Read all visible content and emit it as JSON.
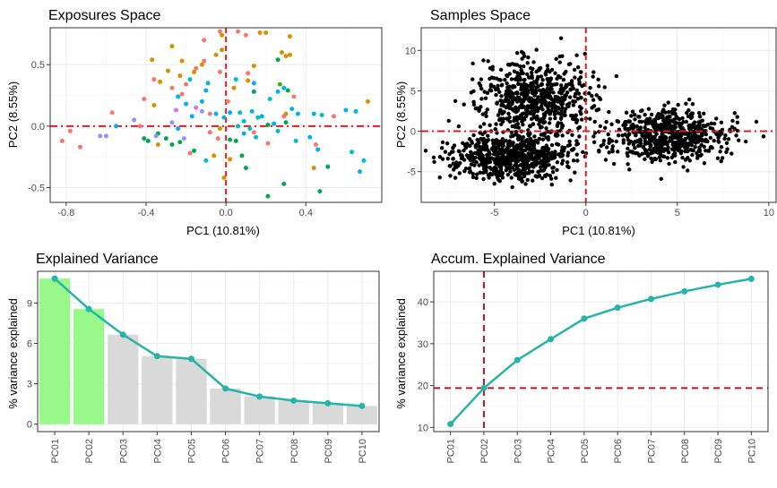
{
  "chart_data": [
    {
      "id": "exposures",
      "type": "scatter",
      "title": "Exposures Space",
      "xlabel": "PC1 (10.81%)",
      "ylabel": "PC2 (8.55%)",
      "xlim": [
        -0.88,
        0.78
      ],
      "ylim": [
        -0.62,
        0.8
      ],
      "xticks": [
        -0.8,
        -0.4,
        0.0,
        0.4
      ],
      "xtick_labels": [
        "-0.8",
        "-0.4",
        "0.0",
        "0.4"
      ],
      "yticks": [
        -0.5,
        0.0,
        0.5
      ],
      "ytick_labels": [
        "-0.5",
        "0.0",
        "0.5"
      ],
      "grid": true,
      "ref_lines": {
        "x": 0,
        "y": 0,
        "color": "#e41a1c"
      },
      "colors": [
        "#f8766d",
        "#d89000",
        "#00a84f",
        "#00b0f6",
        "#9590ff",
        "#e76bf3",
        "#00bfc4",
        "#39b600"
      ],
      "points": [
        [
          -0.03,
          0.77,
          0
        ],
        [
          0.06,
          0.77,
          0
        ],
        [
          0.2,
          0.76,
          1
        ],
        [
          0.17,
          0.76,
          1
        ],
        [
          0.1,
          0.74,
          0
        ],
        [
          -0.02,
          0.74,
          1
        ],
        [
          0.32,
          0.73,
          1
        ],
        [
          -0.11,
          0.7,
          0
        ],
        [
          -0.27,
          0.65,
          1
        ],
        [
          -0.02,
          0.62,
          1
        ],
        [
          0.28,
          0.6,
          1
        ],
        [
          -0.05,
          0.58,
          1
        ],
        [
          0.3,
          0.57,
          1
        ],
        [
          0.32,
          0.58,
          1
        ],
        [
          -0.37,
          0.54,
          1
        ],
        [
          0.26,
          0.54,
          2
        ],
        [
          -0.11,
          0.53,
          0
        ],
        [
          -0.22,
          0.53,
          1
        ],
        [
          -0.12,
          0.5,
          1
        ],
        [
          0.14,
          0.49,
          1
        ],
        [
          -0.15,
          0.47,
          0
        ],
        [
          -0.29,
          0.45,
          1
        ],
        [
          -0.16,
          0.44,
          1
        ],
        [
          -0.03,
          0.44,
          0
        ],
        [
          0.11,
          0.43,
          0
        ],
        [
          -0.23,
          0.41,
          1
        ],
        [
          -0.18,
          0.38,
          6
        ],
        [
          -0.36,
          0.38,
          0
        ],
        [
          -0.33,
          0.36,
          1
        ],
        [
          -0.09,
          0.35,
          6
        ],
        [
          -0.2,
          0.34,
          0
        ],
        [
          0.05,
          0.38,
          6
        ],
        [
          0.11,
          0.37,
          1
        ],
        [
          0.14,
          0.35,
          3
        ],
        [
          0.27,
          0.34,
          7
        ],
        [
          -0.27,
          0.31,
          0
        ],
        [
          0.29,
          0.31,
          3
        ],
        [
          0.04,
          0.31,
          1
        ],
        [
          -0.1,
          0.29,
          3
        ],
        [
          0.26,
          0.28,
          3
        ],
        [
          0.14,
          0.28,
          2
        ],
        [
          0.31,
          0.29,
          2
        ],
        [
          -0.22,
          0.26,
          0
        ],
        [
          0.34,
          0.24,
          0
        ],
        [
          -0.24,
          0.24,
          3
        ],
        [
          -0.41,
          0.22,
          0
        ],
        [
          0.22,
          0.22,
          6
        ],
        [
          -0.12,
          0.2,
          3
        ],
        [
          -0.2,
          0.18,
          3
        ],
        [
          0.01,
          0.2,
          0
        ],
        [
          -0.15,
          0.15,
          5
        ],
        [
          -0.36,
          0.17,
          1
        ],
        [
          0.33,
          0.14,
          3
        ],
        [
          -0.25,
          0.13,
          5
        ],
        [
          -0.12,
          0.12,
          4
        ],
        [
          0.02,
          0.11,
          3
        ],
        [
          0.07,
          0.11,
          6
        ],
        [
          0.13,
          0.12,
          3
        ],
        [
          -0.57,
          0.11,
          0
        ],
        [
          -0.08,
          0.1,
          0
        ],
        [
          -0.05,
          0.1,
          3
        ],
        [
          0.3,
          0.1,
          1
        ],
        [
          0.36,
          0.1,
          3
        ],
        [
          0.71,
          0.2,
          1
        ],
        [
          0.6,
          0.13,
          3
        ],
        [
          0.65,
          0.12,
          6
        ],
        [
          0.29,
          0.08,
          0
        ],
        [
          0.18,
          0.08,
          3
        ],
        [
          -0.17,
          0.08,
          3
        ],
        [
          0.16,
          0.07,
          6
        ],
        [
          -0.01,
          0.07,
          6
        ],
        [
          -0.46,
          0.05,
          4
        ],
        [
          0.44,
          0.1,
          3
        ],
        [
          0.48,
          0.09,
          6
        ],
        [
          0.54,
          0.08,
          0
        ],
        [
          0.09,
          0.04,
          6
        ],
        [
          0.3,
          0.03,
          2
        ],
        [
          -0.27,
          0.03,
          4
        ],
        [
          0.21,
          0.01,
          2
        ],
        [
          0.24,
          0.02,
          3
        ],
        [
          -0.55,
          0.0,
          3
        ],
        [
          -0.43,
          0.0,
          0
        ],
        [
          0.06,
          0.0,
          6
        ],
        [
          -0.24,
          -0.02,
          3
        ],
        [
          -0.03,
          -0.02,
          1
        ],
        [
          0.12,
          -0.02,
          6
        ],
        [
          0.14,
          -0.05,
          0
        ],
        [
          0.26,
          -0.04,
          6
        ],
        [
          -0.08,
          -0.05,
          0
        ],
        [
          -0.34,
          -0.06,
          2
        ],
        [
          0.09,
          -0.06,
          3
        ],
        [
          -0.35,
          -0.08,
          4
        ],
        [
          0.15,
          -0.09,
          6
        ],
        [
          -0.6,
          -0.08,
          4
        ],
        [
          -0.63,
          -0.08,
          4
        ],
        [
          -0.82,
          -0.12,
          0
        ],
        [
          -0.78,
          -0.04,
          0
        ],
        [
          -0.3,
          -0.1,
          2
        ],
        [
          -0.21,
          -0.1,
          4
        ],
        [
          -0.04,
          -0.1,
          0
        ],
        [
          0.02,
          -0.11,
          2
        ],
        [
          -0.23,
          -0.13,
          2
        ],
        [
          -0.41,
          -0.1,
          2
        ],
        [
          -0.39,
          -0.12,
          2
        ],
        [
          0.35,
          -0.12,
          6
        ],
        [
          0.42,
          -0.09,
          3
        ],
        [
          0.05,
          -0.12,
          2
        ],
        [
          -0.27,
          -0.15,
          2
        ],
        [
          0.21,
          -0.14,
          0
        ],
        [
          0.45,
          -0.15,
          0
        ],
        [
          -0.34,
          -0.15,
          1
        ],
        [
          -0.73,
          -0.17,
          0
        ],
        [
          0.46,
          -0.19,
          3
        ],
        [
          -0.16,
          -0.2,
          2
        ],
        [
          -0.18,
          -0.22,
          0
        ],
        [
          0.63,
          -0.21,
          6
        ],
        [
          -0.06,
          -0.24,
          1
        ],
        [
          -0.1,
          -0.28,
          6
        ],
        [
          0.02,
          -0.27,
          1
        ],
        [
          0.08,
          -0.24,
          2
        ],
        [
          0.69,
          -0.28,
          6
        ],
        [
          0.1,
          -0.34,
          2
        ],
        [
          0.44,
          -0.34,
          1
        ],
        [
          0.51,
          -0.33,
          2
        ],
        [
          0.67,
          -0.37,
          3
        ],
        [
          -0.01,
          -0.42,
          1
        ],
        [
          0.29,
          -0.47,
          2
        ],
        [
          0.47,
          -0.53,
          2
        ],
        [
          0.21,
          -0.57,
          2
        ]
      ]
    },
    {
      "id": "samples",
      "type": "scatter",
      "title": "Samples Space",
      "xlabel": "PC1 (10.81%)",
      "ylabel": "PC2 (8.55%)",
      "xlim": [
        -9.0,
        10.4
      ],
      "ylim": [
        -8.8,
        12.8
      ],
      "xticks": [
        -5,
        0,
        5,
        10
      ],
      "xtick_labels": [
        "-5",
        "0",
        "5",
        "10"
      ],
      "yticks": [
        -5,
        0,
        5,
        10
      ],
      "ytick_labels": [
        "-5",
        "0",
        "5",
        "10"
      ],
      "grid": true,
      "ref_lines": {
        "x": 0,
        "y": 0,
        "color": "#e41a1c"
      },
      "clusters": [
        {
          "cx": -2.8,
          "cy": 4.1,
          "sx": 1.7,
          "sy": 2.5,
          "n": 620
        },
        {
          "cx": -4.1,
          "cy": -3.0,
          "sx": 1.8,
          "sy": 1.6,
          "n": 680
        },
        {
          "cx": 4.6,
          "cy": -0.6,
          "sx": 1.7,
          "sy": 1.8,
          "n": 620
        }
      ]
    },
    {
      "id": "explained",
      "type": "bar",
      "title": "Explained Variance",
      "xlabel": "",
      "ylabel": "% variance explained",
      "categories": [
        "PC01",
        "PC02",
        "PC03",
        "PC04",
        "PC05",
        "PC06",
        "PC07",
        "PC08",
        "PC09",
        "PC10"
      ],
      "values": [
        10.81,
        8.55,
        6.65,
        5.05,
        4.85,
        2.65,
        2.05,
        1.75,
        1.55,
        1.35
      ],
      "highlight": [
        true,
        true,
        false,
        false,
        false,
        false,
        false,
        false,
        false,
        false
      ],
      "bar_color": "#d9d9d9",
      "highlight_color": "#98f98a",
      "line_color": "#26b3a8",
      "ylim": [
        -0.55,
        11.35
      ],
      "yticks": [
        0,
        3,
        6,
        9
      ],
      "ytick_labels": [
        "0",
        "3",
        "6",
        "9"
      ],
      "grid": true
    },
    {
      "id": "accum",
      "type": "line",
      "title": "Accum. Explained Variance",
      "xlabel": "",
      "ylabel": "% variance explained",
      "categories": [
        "PC01",
        "PC02",
        "PC03",
        "PC04",
        "PC05",
        "PC06",
        "PC07",
        "PC08",
        "PC09",
        "PC10"
      ],
      "values": [
        10.8,
        19.4,
        26.1,
        31.1,
        36.0,
        38.6,
        40.7,
        42.5,
        44.1,
        45.5
      ],
      "line_color": "#26b3a8",
      "ref_lines": {
        "x_index": 1,
        "y": 19.4,
        "color": "#b2182b"
      },
      "ylim": [
        9.0,
        47.3
      ],
      "yticks": [
        10,
        20,
        30,
        40
      ],
      "ytick_labels": [
        "10",
        "20",
        "30",
        "40"
      ],
      "grid": true
    }
  ]
}
